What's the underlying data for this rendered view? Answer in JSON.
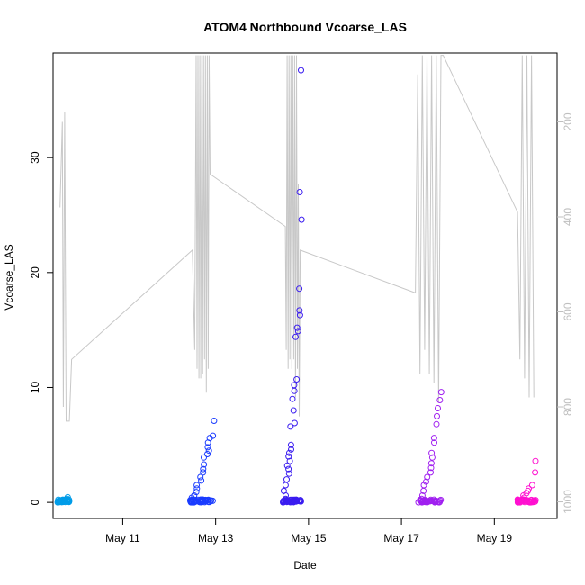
{
  "chart_data": {
    "type": "scatter",
    "title": "ATOM4 Northbound Vcoarse_LAS",
    "xlabel": "Date",
    "ylabel": "Vcoarse_LAS",
    "x_ticks": [
      "May 11",
      "May 13",
      "May 15",
      "May 17",
      "May 19"
    ],
    "x_tick_days": [
      11,
      13,
      15,
      17,
      19
    ],
    "xlim_days": [
      9.5,
      20.35
    ],
    "ylim": [
      -1.4,
      39.1
    ],
    "y_ticks": [
      0,
      10,
      20,
      30
    ],
    "y2_ticks": [
      200,
      400,
      600,
      800,
      1000
    ],
    "y2lim_inverted": [
      1035,
      55
    ],
    "grid": false,
    "legend": "none",
    "series": [
      {
        "marker": "open-circle",
        "color_gradient": [
          "#00a0ff",
          "#0040ff",
          "#4000ff",
          "#a000ff",
          "#ff00d0"
        ],
        "clusters": [
          {
            "day_range": [
              9.6,
              9.85
            ],
            "y_values": [
              0.0,
              0.05,
              0.1,
              0.15,
              0.2,
              0.3,
              0.45
            ],
            "color": "#009ce8"
          },
          {
            "day_range": [
              12.45,
              12.95
            ],
            "y_values": [
              0.0,
              0.1,
              0.2,
              0.4,
              0.6,
              0.9,
              1.2,
              1.5,
              1.9,
              2.2,
              2.6,
              2.9,
              3.3,
              3.9,
              4.2,
              4.5,
              4.8,
              5.2,
              5.6,
              5.8,
              7.1
            ],
            "color": "#1a3cff"
          },
          {
            "day_range": [
              14.45,
              14.85
            ],
            "y_values": [
              0.0,
              0.1,
              0.3,
              0.6,
              1.0,
              1.5,
              2.0,
              2.5,
              2.9,
              3.2,
              3.6,
              4.0,
              4.3,
              4.6,
              5.0,
              6.6,
              6.9,
              8.0,
              9.0,
              9.7,
              10.2,
              10.7,
              14.4,
              14.9,
              15.2,
              16.3,
              16.7,
              18.6,
              24.6,
              27.0,
              37.6
            ],
            "color": "#3a1cf0"
          },
          {
            "day_range": [
              17.4,
              17.85
            ],
            "y_values": [
              0.0,
              0.1,
              0.3,
              0.6,
              1.0,
              1.5,
              1.8,
              2.2,
              2.6,
              3.0,
              3.4,
              3.9,
              4.3,
              5.2,
              5.6,
              6.8,
              7.5,
              8.2,
              8.9,
              9.6
            ],
            "color": "#a020f0"
          },
          {
            "day_range": [
              19.5,
              19.9
            ],
            "y_values": [
              0.0,
              0.1,
              0.2,
              0.4,
              0.6,
              0.8,
              1.0,
              1.2,
              1.5,
              2.6,
              3.6
            ],
            "color": "#ff10d0"
          }
        ]
      },
      {
        "marker": "line",
        "axis": "right",
        "color": "#c8c8c8",
        "points": [
          [
            9.65,
            380
          ],
          [
            9.7,
            200
          ],
          [
            9.72,
            800
          ],
          [
            9.75,
            180
          ],
          [
            9.78,
            830
          ],
          [
            9.85,
            830
          ],
          [
            9.9,
            700
          ],
          [
            12.5,
            470
          ],
          [
            12.55,
            680
          ],
          [
            12.58,
            60
          ],
          [
            12.6,
            720
          ],
          [
            12.62,
            60
          ],
          [
            12.64,
            740
          ],
          [
            12.66,
            60
          ],
          [
            12.68,
            740
          ],
          [
            12.7,
            60
          ],
          [
            12.72,
            730
          ],
          [
            12.74,
            60
          ],
          [
            12.76,
            700
          ],
          [
            12.78,
            60
          ],
          [
            12.8,
            770
          ],
          [
            12.82,
            60
          ],
          [
            12.84,
            720
          ],
          [
            12.86,
            60
          ],
          [
            12.88,
            310
          ],
          [
            14.5,
            420
          ],
          [
            14.52,
            680
          ],
          [
            14.54,
            60
          ],
          [
            14.56,
            720
          ],
          [
            14.58,
            60
          ],
          [
            14.6,
            700
          ],
          [
            14.62,
            60
          ],
          [
            14.64,
            720
          ],
          [
            14.66,
            60
          ],
          [
            14.68,
            700
          ],
          [
            14.7,
            60
          ],
          [
            14.72,
            780
          ],
          [
            14.74,
            60
          ],
          [
            14.76,
            720
          ],
          [
            14.78,
            330
          ],
          [
            14.8,
            820
          ],
          [
            14.82,
            470
          ],
          [
            17.3,
            560
          ],
          [
            17.35,
            100
          ],
          [
            17.4,
            730
          ],
          [
            17.45,
            60
          ],
          [
            17.5,
            680
          ],
          [
            17.55,
            60
          ],
          [
            17.6,
            730
          ],
          [
            17.65,
            60
          ],
          [
            17.7,
            750
          ],
          [
            17.75,
            60
          ],
          [
            17.8,
            790
          ],
          [
            17.85,
            60
          ],
          [
            17.9,
            60
          ],
          [
            19.5,
            390
          ],
          [
            19.55,
            700
          ],
          [
            19.6,
            60
          ],
          [
            19.65,
            740
          ],
          [
            19.7,
            60
          ],
          [
            19.75,
            780
          ],
          [
            19.8,
            60
          ],
          [
            19.85,
            780
          ]
        ]
      }
    ]
  }
}
